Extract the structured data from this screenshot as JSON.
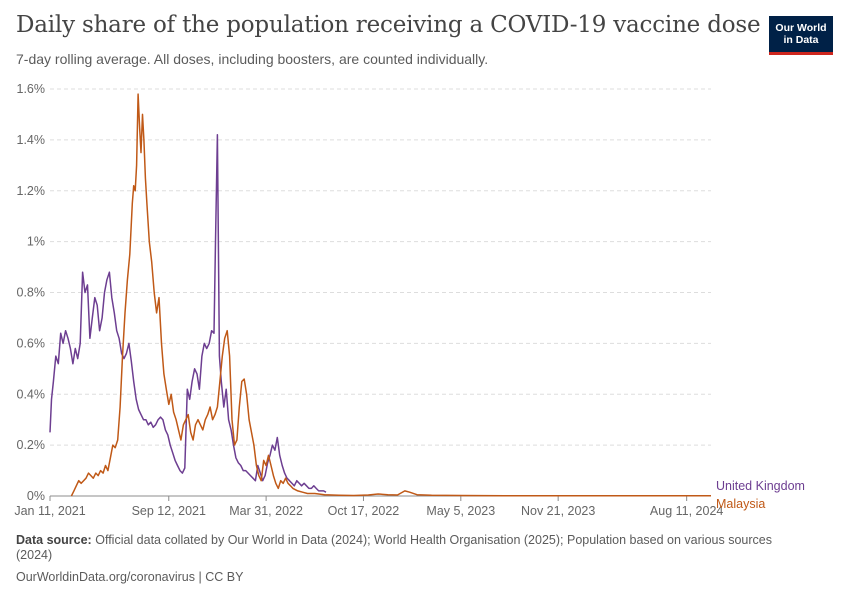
{
  "header": {
    "title": "Daily share of the population receiving a COVID-19 vaccine dose",
    "subtitle": "7-day rolling average. All doses, including boosters, are counted individually."
  },
  "logo": {
    "line1": "Our World",
    "line2": "in Data"
  },
  "footer": {
    "source_label": "Data source:",
    "source_text": "Official data collated by Our World in Data (2024); World Health Organisation (2025); Population based on various sources (2024)",
    "url": "OurWorldinData.org/coronavirus | CC BY"
  },
  "chart_data": {
    "type": "line",
    "title": "Daily share of the population receiving a COVID-19 vaccine dose",
    "ylabel": "",
    "xlabel": "",
    "ylim": [
      0,
      1.6
    ],
    "xlim": [
      "2021-01-11",
      "2024-09-30"
    ],
    "y_ticks": [
      0,
      0.2,
      0.4,
      0.6,
      0.8,
      1.0,
      1.2,
      1.4,
      1.6
    ],
    "y_tick_labels": [
      "0%",
      "0.2%",
      "0.4%",
      "0.6%",
      "0.8%",
      "1%",
      "1.2%",
      "1.4%",
      "1.6%"
    ],
    "x_ticks": [
      "2021-01-11",
      "2021-09-12",
      "2022-03-31",
      "2022-10-17",
      "2023-05-05",
      "2023-11-21",
      "2024-08-11"
    ],
    "x_tick_labels": [
      "Jan 11, 2021",
      "Sep 12, 2021",
      "Mar 31, 2022",
      "Oct 17, 2022",
      "May 5, 2023",
      "Nov 21, 2023",
      "Aug 11, 2024"
    ],
    "grid": true,
    "legend": "right-end labels",
    "colors": {
      "United Kingdom": "#6d3e91",
      "Malaysia": "#c05917"
    },
    "series": [
      {
        "name": "United Kingdom",
        "points": [
          [
            "2021-01-11",
            0.25
          ],
          [
            "2021-01-14",
            0.38
          ],
          [
            "2021-01-18",
            0.45
          ],
          [
            "2021-01-23",
            0.55
          ],
          [
            "2021-01-28",
            0.52
          ],
          [
            "2021-02-02",
            0.64
          ],
          [
            "2021-02-07",
            0.6
          ],
          [
            "2021-02-12",
            0.65
          ],
          [
            "2021-02-17",
            0.62
          ],
          [
            "2021-02-22",
            0.58
          ],
          [
            "2021-02-27",
            0.52
          ],
          [
            "2021-03-04",
            0.58
          ],
          [
            "2021-03-09",
            0.54
          ],
          [
            "2021-03-14",
            0.6
          ],
          [
            "2021-03-19",
            0.88
          ],
          [
            "2021-03-24",
            0.8
          ],
          [
            "2021-03-29",
            0.83
          ],
          [
            "2021-04-03",
            0.62
          ],
          [
            "2021-04-08",
            0.7
          ],
          [
            "2021-04-13",
            0.78
          ],
          [
            "2021-04-18",
            0.75
          ],
          [
            "2021-04-23",
            0.65
          ],
          [
            "2021-04-28",
            0.7
          ],
          [
            "2021-05-03",
            0.8
          ],
          [
            "2021-05-08",
            0.85
          ],
          [
            "2021-05-13",
            0.88
          ],
          [
            "2021-05-18",
            0.78
          ],
          [
            "2021-05-23",
            0.72
          ],
          [
            "2021-05-28",
            0.65
          ],
          [
            "2021-06-02",
            0.62
          ],
          [
            "2021-06-07",
            0.56
          ],
          [
            "2021-06-12",
            0.54
          ],
          [
            "2021-06-17",
            0.56
          ],
          [
            "2021-06-22",
            0.6
          ],
          [
            "2021-06-27",
            0.53
          ],
          [
            "2021-07-02",
            0.45
          ],
          [
            "2021-07-07",
            0.38
          ],
          [
            "2021-07-12",
            0.34
          ],
          [
            "2021-07-17",
            0.32
          ],
          [
            "2021-07-22",
            0.3
          ],
          [
            "2021-07-27",
            0.3
          ],
          [
            "2021-08-01",
            0.28
          ],
          [
            "2021-08-06",
            0.29
          ],
          [
            "2021-08-11",
            0.27
          ],
          [
            "2021-08-16",
            0.28
          ],
          [
            "2021-08-21",
            0.3
          ],
          [
            "2021-08-26",
            0.31
          ],
          [
            "2021-08-31",
            0.3
          ],
          [
            "2021-09-05",
            0.26
          ],
          [
            "2021-09-10",
            0.24
          ],
          [
            "2021-09-15",
            0.2
          ],
          [
            "2021-09-20",
            0.17
          ],
          [
            "2021-09-25",
            0.14
          ],
          [
            "2021-09-30",
            0.12
          ],
          [
            "2021-10-05",
            0.1
          ],
          [
            "2021-10-10",
            0.09
          ],
          [
            "2021-10-15",
            0.11
          ],
          [
            "2021-10-20",
            0.42
          ],
          [
            "2021-10-25",
            0.38
          ],
          [
            "2021-10-30",
            0.45
          ],
          [
            "2021-11-04",
            0.5
          ],
          [
            "2021-11-09",
            0.48
          ],
          [
            "2021-11-14",
            0.42
          ],
          [
            "2021-11-19",
            0.55
          ],
          [
            "2021-11-24",
            0.6
          ],
          [
            "2021-11-29",
            0.58
          ],
          [
            "2021-12-04",
            0.6
          ],
          [
            "2021-12-09",
            0.65
          ],
          [
            "2021-12-14",
            0.64
          ],
          [
            "2021-12-17",
            1.0
          ],
          [
            "2021-12-21",
            1.42
          ],
          [
            "2021-12-25",
            0.55
          ],
          [
            "2021-12-29",
            0.45
          ],
          [
            "2022-01-03",
            0.35
          ],
          [
            "2022-01-08",
            0.42
          ],
          [
            "2022-01-13",
            0.3
          ],
          [
            "2022-01-18",
            0.26
          ],
          [
            "2022-01-23",
            0.2
          ],
          [
            "2022-01-28",
            0.15
          ],
          [
            "2022-02-02",
            0.13
          ],
          [
            "2022-02-07",
            0.12
          ],
          [
            "2022-02-12",
            0.1
          ],
          [
            "2022-02-17",
            0.1
          ],
          [
            "2022-02-22",
            0.09
          ],
          [
            "2022-02-27",
            0.08
          ],
          [
            "2022-03-04",
            0.07
          ],
          [
            "2022-03-09",
            0.06
          ],
          [
            "2022-03-14",
            0.12
          ],
          [
            "2022-03-19",
            0.09
          ],
          [
            "2022-03-24",
            0.06
          ],
          [
            "2022-03-29",
            0.08
          ],
          [
            "2022-04-03",
            0.13
          ],
          [
            "2022-04-08",
            0.16
          ],
          [
            "2022-04-13",
            0.2
          ],
          [
            "2022-04-18",
            0.18
          ],
          [
            "2022-04-23",
            0.23
          ],
          [
            "2022-04-28",
            0.16
          ],
          [
            "2022-05-03",
            0.12
          ],
          [
            "2022-05-08",
            0.09
          ],
          [
            "2022-05-13",
            0.07
          ],
          [
            "2022-05-18",
            0.06
          ],
          [
            "2022-05-23",
            0.05
          ],
          [
            "2022-05-28",
            0.04
          ],
          [
            "2022-06-02",
            0.06
          ],
          [
            "2022-06-07",
            0.05
          ],
          [
            "2022-06-12",
            0.04
          ],
          [
            "2022-06-17",
            0.05
          ],
          [
            "2022-06-22",
            0.04
          ],
          [
            "2022-06-27",
            0.03
          ],
          [
            "2022-07-02",
            0.03
          ],
          [
            "2022-07-07",
            0.04
          ],
          [
            "2022-07-12",
            0.03
          ],
          [
            "2022-07-17",
            0.02
          ],
          [
            "2022-07-22",
            0.02
          ],
          [
            "2022-07-27",
            0.02
          ],
          [
            "2022-08-01",
            0.015
          ]
        ]
      },
      {
        "name": "Malaysia",
        "points": [
          [
            "2021-02-24",
            0.0
          ],
          [
            "2021-03-01",
            0.02
          ],
          [
            "2021-03-06",
            0.04
          ],
          [
            "2021-03-11",
            0.06
          ],
          [
            "2021-03-16",
            0.05
          ],
          [
            "2021-03-21",
            0.06
          ],
          [
            "2021-03-26",
            0.07
          ],
          [
            "2021-03-31",
            0.09
          ],
          [
            "2021-04-05",
            0.08
          ],
          [
            "2021-04-10",
            0.07
          ],
          [
            "2021-04-15",
            0.09
          ],
          [
            "2021-04-20",
            0.08
          ],
          [
            "2021-04-25",
            0.1
          ],
          [
            "2021-04-30",
            0.09
          ],
          [
            "2021-05-05",
            0.12
          ],
          [
            "2021-05-10",
            0.1
          ],
          [
            "2021-05-15",
            0.15
          ],
          [
            "2021-05-20",
            0.2
          ],
          [
            "2021-05-25",
            0.19
          ],
          [
            "2021-05-30",
            0.22
          ],
          [
            "2021-06-04",
            0.35
          ],
          [
            "2021-06-09",
            0.55
          ],
          [
            "2021-06-14",
            0.72
          ],
          [
            "2021-06-19",
            0.85
          ],
          [
            "2021-06-24",
            0.95
          ],
          [
            "2021-06-29",
            1.15
          ],
          [
            "2021-07-02",
            1.22
          ],
          [
            "2021-07-05",
            1.2
          ],
          [
            "2021-07-08",
            1.3
          ],
          [
            "2021-07-11",
            1.58
          ],
          [
            "2021-07-14",
            1.45
          ],
          [
            "2021-07-17",
            1.35
          ],
          [
            "2021-07-20",
            1.5
          ],
          [
            "2021-07-23",
            1.4
          ],
          [
            "2021-07-26",
            1.25
          ],
          [
            "2021-07-29",
            1.15
          ],
          [
            "2021-08-03",
            1.0
          ],
          [
            "2021-08-08",
            0.92
          ],
          [
            "2021-08-13",
            0.8
          ],
          [
            "2021-08-18",
            0.72
          ],
          [
            "2021-08-23",
            0.78
          ],
          [
            "2021-08-28",
            0.6
          ],
          [
            "2021-09-02",
            0.48
          ],
          [
            "2021-09-07",
            0.42
          ],
          [
            "2021-09-12",
            0.36
          ],
          [
            "2021-09-17",
            0.4
          ],
          [
            "2021-09-22",
            0.33
          ],
          [
            "2021-09-27",
            0.3
          ],
          [
            "2021-10-02",
            0.26
          ],
          [
            "2021-10-07",
            0.22
          ],
          [
            "2021-10-12",
            0.28
          ],
          [
            "2021-10-17",
            0.3
          ],
          [
            "2021-10-22",
            0.32
          ],
          [
            "2021-10-27",
            0.25
          ],
          [
            "2021-11-01",
            0.22
          ],
          [
            "2021-11-06",
            0.28
          ],
          [
            "2021-11-11",
            0.3
          ],
          [
            "2021-11-16",
            0.28
          ],
          [
            "2021-11-21",
            0.26
          ],
          [
            "2021-11-26",
            0.3
          ],
          [
            "2021-12-01",
            0.32
          ],
          [
            "2021-12-06",
            0.35
          ],
          [
            "2021-12-11",
            0.3
          ],
          [
            "2021-12-16",
            0.32
          ],
          [
            "2021-12-21",
            0.35
          ],
          [
            "2021-12-26",
            0.45
          ],
          [
            "2021-12-31",
            0.55
          ],
          [
            "2022-01-05",
            0.62
          ],
          [
            "2022-01-10",
            0.65
          ],
          [
            "2022-01-15",
            0.55
          ],
          [
            "2022-01-20",
            0.3
          ],
          [
            "2022-01-25",
            0.2
          ],
          [
            "2022-01-30",
            0.22
          ],
          [
            "2022-02-04",
            0.35
          ],
          [
            "2022-02-09",
            0.45
          ],
          [
            "2022-02-14",
            0.46
          ],
          [
            "2022-02-19",
            0.4
          ],
          [
            "2022-02-24",
            0.3
          ],
          [
            "2022-03-01",
            0.25
          ],
          [
            "2022-03-06",
            0.2
          ],
          [
            "2022-03-11",
            0.12
          ],
          [
            "2022-03-16",
            0.08
          ],
          [
            "2022-03-21",
            0.06
          ],
          [
            "2022-03-26",
            0.14
          ],
          [
            "2022-03-31",
            0.12
          ],
          [
            "2022-04-05",
            0.16
          ],
          [
            "2022-04-10",
            0.12
          ],
          [
            "2022-04-15",
            0.08
          ],
          [
            "2022-04-20",
            0.05
          ],
          [
            "2022-04-25",
            0.03
          ],
          [
            "2022-04-30",
            0.06
          ],
          [
            "2022-05-05",
            0.05
          ],
          [
            "2022-05-10",
            0.07
          ],
          [
            "2022-05-15",
            0.05
          ],
          [
            "2022-05-20",
            0.04
          ],
          [
            "2022-05-25",
            0.03
          ],
          [
            "2022-06-04",
            0.02
          ],
          [
            "2022-06-14",
            0.015
          ],
          [
            "2022-06-24",
            0.01
          ],
          [
            "2022-07-09",
            0.01
          ],
          [
            "2022-07-29",
            0.005
          ],
          [
            "2022-08-28",
            0.003
          ],
          [
            "2022-09-27",
            0.002
          ],
          [
            "2022-10-27",
            0.004
          ],
          [
            "2022-11-16",
            0.008
          ],
          [
            "2022-12-06",
            0.005
          ],
          [
            "2022-12-26",
            0.004
          ],
          [
            "2023-01-10",
            0.02
          ],
          [
            "2023-01-20",
            0.015
          ],
          [
            "2023-02-04",
            0.005
          ],
          [
            "2023-03-06",
            0.003
          ],
          [
            "2023-05-05",
            0.002
          ],
          [
            "2023-08-03",
            0.001
          ],
          [
            "2023-11-21",
            0.001
          ],
          [
            "2024-03-10",
            0.001
          ],
          [
            "2024-08-11",
            0.001
          ],
          [
            "2024-09-30",
            0.001
          ]
        ]
      }
    ]
  }
}
